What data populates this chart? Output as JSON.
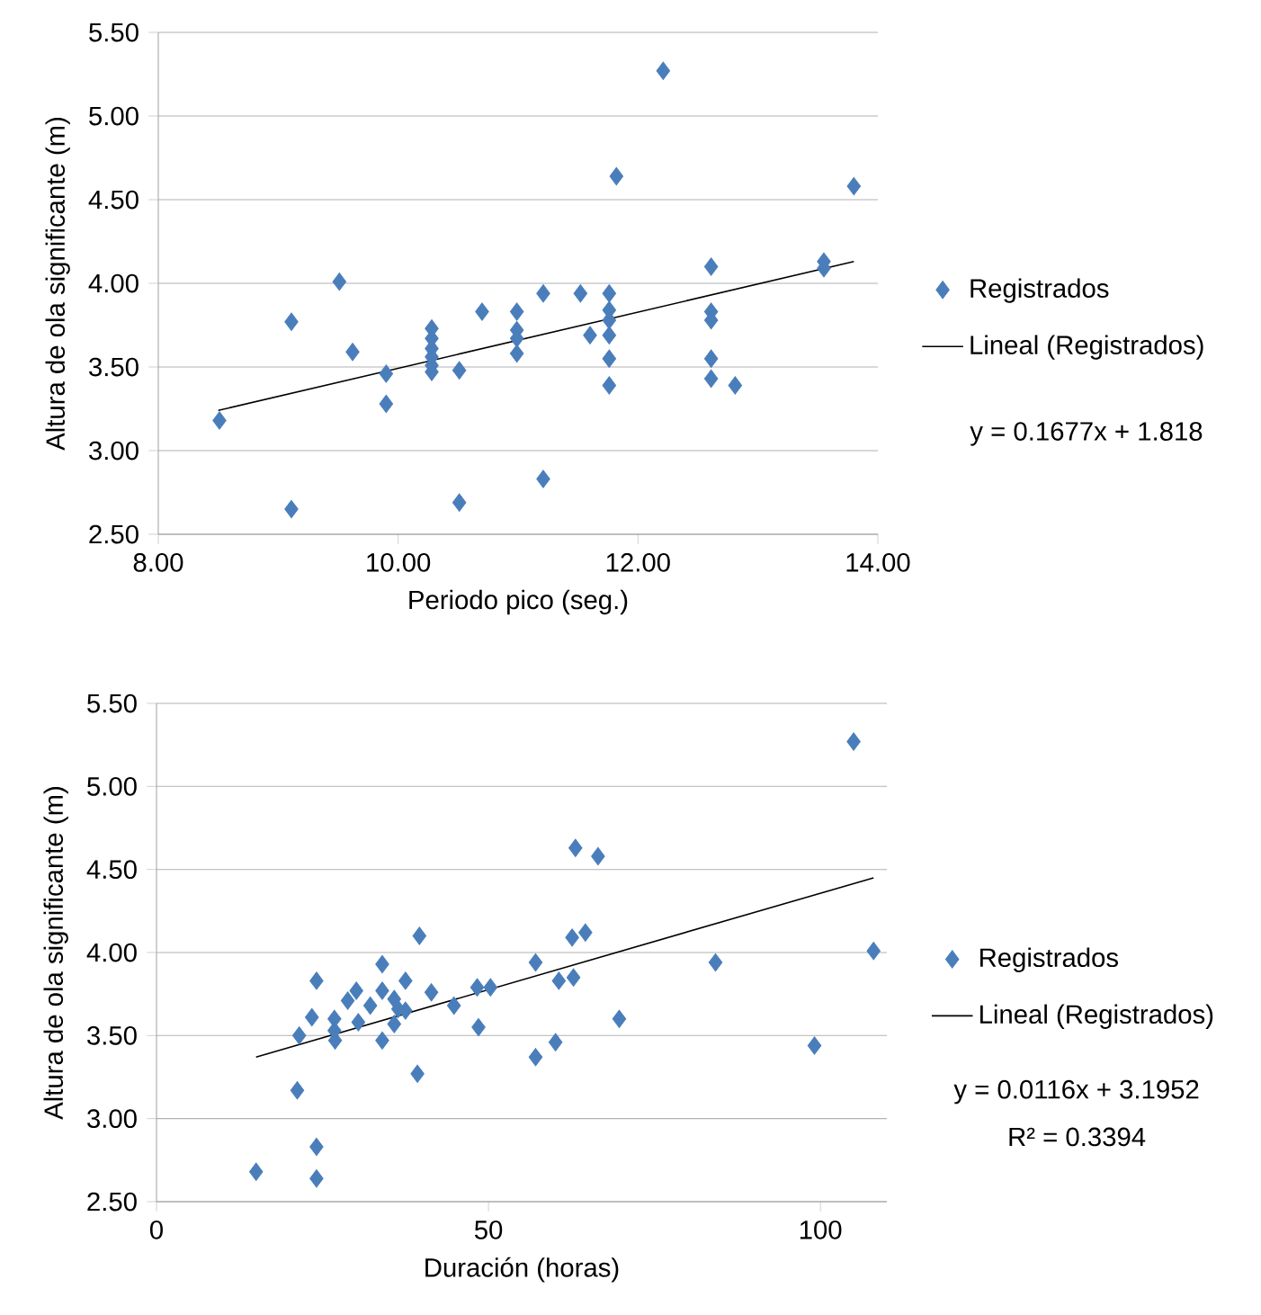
{
  "chart_data": [
    {
      "type": "scatter",
      "xlabel": "Periodo pico (seg.)",
      "ylabel": "Altura de ola significante (m)",
      "xlim": [
        8,
        14
      ],
      "ylim": [
        2.5,
        5.5
      ],
      "xticks": [
        {
          "value": 8,
          "label": "8.00"
        },
        {
          "value": 10,
          "label": "10.00"
        },
        {
          "value": 12,
          "label": "12.00"
        },
        {
          "value": 14,
          "label": "14.00"
        }
      ],
      "yticks": [
        {
          "value": 2.5,
          "label": "2.50"
        },
        {
          "value": 3,
          "label": "3.00"
        },
        {
          "value": 3.5,
          "label": "3.50"
        },
        {
          "value": 4,
          "label": "4.00"
        },
        {
          "value": 4.5,
          "label": "4.50"
        },
        {
          "value": 5,
          "label": "5.00"
        },
        {
          "value": 5.5,
          "label": "5.50"
        }
      ],
      "grid": "y",
      "legend": "right",
      "annotations": [
        "y = 0.1677x + 1.818"
      ],
      "series": [
        {
          "name": "Registrados",
          "marker": "diamond",
          "color": "#4a7ebb",
          "x": [
            8.51,
            9.11,
            9.11,
            9.51,
            9.62,
            9.9,
            9.9,
            10.28,
            10.28,
            10.28,
            10.28,
            10.28,
            10.28,
            10.51,
            10.51,
            10.7,
            10.99,
            10.99,
            10.99,
            10.99,
            11.21,
            11.21,
            11.52,
            11.6,
            11.76,
            11.76,
            11.76,
            11.76,
            11.76,
            11.76,
            11.82,
            12.21,
            12.61,
            12.61,
            12.61,
            12.61,
            12.61,
            12.81,
            13.55,
            13.55,
            13.8
          ],
          "values": [
            3.18,
            3.77,
            2.65,
            4.01,
            3.59,
            3.46,
            3.28,
            3.73,
            3.67,
            3.61,
            3.56,
            3.51,
            3.47,
            3.48,
            2.69,
            3.83,
            3.83,
            3.72,
            3.67,
            3.58,
            3.94,
            2.83,
            3.94,
            3.69,
            3.94,
            3.84,
            3.78,
            3.69,
            3.55,
            3.39,
            4.64,
            5.27,
            4.1,
            3.83,
            3.78,
            3.55,
            3.43,
            3.39,
            4.13,
            4.09,
            4.58
          ]
        },
        {
          "name": "Lineal (Registrados)",
          "type": "line",
          "color": "#000000",
          "x": [
            8.5,
            13.8
          ],
          "values": [
            3.24,
            4.13
          ]
        }
      ]
    },
    {
      "type": "scatter",
      "xlabel": "Duración (horas)",
      "ylabel": "Altura de ola significante (m)",
      "xlim": [
        0,
        110
      ],
      "ylim": [
        2.5,
        5.5
      ],
      "xticks": [
        0,
        50,
        100
      ],
      "yticks": [
        {
          "value": 2.5,
          "label": "2.50"
        },
        {
          "value": 3,
          "label": "3.00"
        },
        {
          "value": 3.5,
          "label": "3.50"
        },
        {
          "value": 4,
          "label": "4.00"
        },
        {
          "value": 4.5,
          "label": "4.50"
        },
        {
          "value": 5,
          "label": "5.00"
        },
        {
          "value": 5.5,
          "label": "5.50"
        }
      ],
      "grid": "y",
      "legend": "right",
      "annotations": [
        "y = 0.0116x + 3.1952",
        "R² = 0.3394"
      ],
      "series": [
        {
          "name": "Registrados",
          "marker": "diamond",
          "color": "#4a7ebb",
          "x": [
            15.0,
            21.2,
            24.1,
            24.1,
            21.5,
            23.4,
            24.1,
            26.8,
            26.9,
            26.8,
            28.8,
            30.1,
            30.4,
            32.2,
            34.0,
            34.0,
            34.0,
            35.8,
            36.4,
            35.8,
            37.5,
            37.5,
            39.3,
            39.6,
            41.4,
            44.8,
            48.3,
            48.5,
            50.3,
            57.1,
            57.1,
            60.1,
            60.6,
            62.8,
            62.6,
            64.6,
            63.1,
            66.5,
            69.7,
            84.2,
            99.1,
            105.0,
            108.0
          ],
          "values": [
            2.68,
            3.17,
            2.83,
            2.64,
            3.5,
            3.61,
            3.83,
            3.6,
            3.47,
            3.53,
            3.71,
            3.77,
            3.58,
            3.68,
            3.93,
            3.77,
            3.47,
            3.72,
            3.66,
            3.57,
            3.65,
            3.83,
            3.27,
            4.1,
            3.76,
            3.68,
            3.79,
            3.55,
            3.79,
            3.37,
            3.94,
            3.46,
            3.83,
            3.85,
            4.09,
            4.12,
            4.63,
            4.58,
            3.6,
            3.94,
            3.44,
            5.27,
            4.01
          ]
        },
        {
          "name": "Lineal (Registrados)",
          "type": "line",
          "color": "#000000",
          "x": [
            15,
            108
          ],
          "values": [
            3.37,
            4.45
          ]
        }
      ]
    }
  ]
}
